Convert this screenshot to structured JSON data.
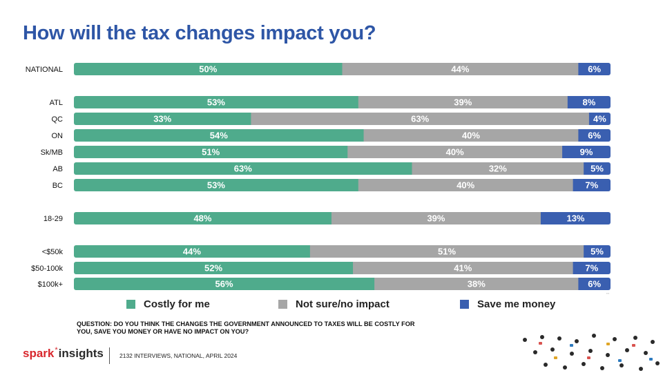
{
  "title": "How will the tax changes impact you?",
  "colors": {
    "costly": "#4fab8c",
    "notsure": "#a6a6a6",
    "save": "#3a5fb0",
    "title": "#2e56a6",
    "brand_red": "#d8262c"
  },
  "chart_data": {
    "type": "bar",
    "orientation": "horizontal",
    "stacked": true,
    "normalized": true,
    "categories": [
      "NATIONAL",
      "ATL",
      "QC",
      "ON",
      "Sk/MB",
      "AB",
      "BC",
      "18-29",
      "<$50k",
      "$50-100k",
      "$100k+"
    ],
    "groups": [
      [
        0
      ],
      [
        1,
        2,
        3,
        4,
        5,
        6
      ],
      [
        7
      ],
      [
        8,
        9,
        10
      ]
    ],
    "series": [
      {
        "name": "Costly for me",
        "values": [
          50,
          53,
          33,
          54,
          51,
          63,
          53,
          48,
          44,
          52,
          56
        ]
      },
      {
        "name": "Not sure/no impact",
        "values": [
          44,
          39,
          63,
          40,
          40,
          32,
          40,
          39,
          51,
          41,
          38
        ]
      },
      {
        "name": "Save me money",
        "values": [
          6,
          8,
          4,
          6,
          9,
          5,
          7,
          13,
          5,
          7,
          6
        ]
      }
    ],
    "data_labels": [
      [
        "50%",
        "53%",
        "33%",
        "54%",
        "51%",
        "63%",
        "53%",
        "48%",
        "44%",
        "52%",
        "56%"
      ],
      [
        "44%",
        "39%",
        "63%",
        "40%",
        "40%",
        "32%",
        "40%",
        "39%",
        "51%",
        "41%",
        "38%"
      ],
      [
        "6%",
        "8%",
        "4%",
        "6%",
        "9%",
        "5%",
        "7%",
        "13%",
        "5%",
        "7%",
        "6%"
      ]
    ],
    "legend_position": "bottom",
    "grid": false
  },
  "legend": {
    "costly": "Costly for me",
    "notsure": "Not sure/no impact",
    "save": "Save me money"
  },
  "question": "QUESTION: DO YOU THINK THE CHANGES THE GOVERNMENT ANNOUNCED TO TAXES WILL BE COSTLY FOR YOU, SAVE YOU MONEY OR HAVE NO IMPACT ON YOU?",
  "brand": {
    "part1": "spark",
    "star": "*",
    "part2": "insights"
  },
  "footer": "2132 INTERVIEWS, NATIONAL, APRIL 2024"
}
